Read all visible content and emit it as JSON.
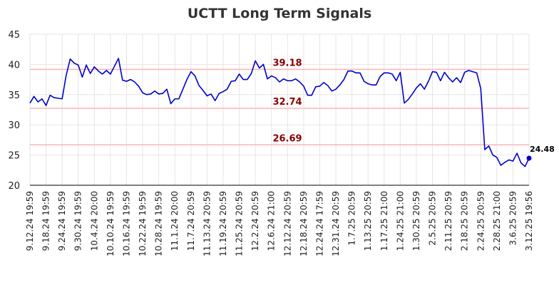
{
  "chart_data": {
    "type": "line",
    "title": "UCTT Long Term Signals",
    "ylim": [
      20,
      45
    ],
    "yticks": [
      20,
      25,
      30,
      35,
      40,
      45
    ],
    "grid": true,
    "x_tick_labels": [
      "9.12.24 19:59",
      "9.18.24 19:59",
      "9.24.24 19:59",
      "9.30.24 19:59",
      "10.4.24 20:00",
      "10.10.24 19:59",
      "10.16.24 19:59",
      "10.22.24 19:59",
      "10.28.24 19:59",
      "11.1.24 20:00",
      "11.7.24 20:59",
      "11.13.24 20:59",
      "11.19.24 20:59",
      "11.25.24 20:59",
      "12.2.24 20:59",
      "12.6.24 21:00",
      "12.12.24 20:59",
      "12.18.24 20:59",
      "12.24.24 17:59",
      "12.31.24 20:59",
      "1.7.25 20:59",
      "1.13.25 20:59",
      "1.17.25 21:00",
      "1.24.25 21:00",
      "1.30.25 20:59",
      "2.5.25 20:59",
      "2.11.25 20:59",
      "2.18.25 20:59",
      "2.24.25 20:59",
      "2.28.25 21:00",
      "3.6.25 20:59",
      "3.12.25 19:56"
    ],
    "levels": [
      {
        "label": "39.18",
        "value": 39.18
      },
      {
        "label": "32.74",
        "value": 32.74
      },
      {
        "label": "26.69",
        "value": 26.69
      }
    ],
    "line_color": "#0000cc",
    "level_color": "#ffb3b3",
    "last_point": {
      "label": "24.48",
      "value": 24.48
    },
    "series": [
      {
        "values": [
          33.6,
          34.7,
          33.8,
          34.3,
          33.2,
          34.9,
          34.5,
          34.4,
          34.3,
          38.2,
          40.9,
          40.2,
          39.9,
          37.9,
          39.9,
          38.5,
          39.6,
          38.9,
          38.4,
          39.0,
          38.4,
          39.7,
          41.0,
          37.4,
          37.2,
          37.5,
          37.1,
          36.4,
          35.3,
          35.0,
          35.1,
          35.6,
          35.1,
          35.2,
          35.9,
          33.5,
          34.3,
          34.3,
          35.9,
          37.5,
          38.8,
          38.1,
          36.5,
          35.7,
          34.8,
          35.1,
          34.0,
          35.2,
          35.5,
          35.9,
          37.2,
          37.3,
          38.4,
          37.5,
          37.5,
          38.5,
          40.6,
          39.4,
          40.0,
          37.6,
          38.1,
          37.8,
          37.1,
          37.6,
          37.3,
          37.3,
          37.6,
          37.1,
          36.4,
          34.9,
          34.9,
          36.3,
          36.4,
          37.0,
          36.5,
          35.6,
          35.9,
          36.6,
          37.5,
          38.9,
          38.9,
          38.6,
          38.6,
          37.2,
          36.8,
          36.6,
          36.6,
          38.0,
          38.6,
          38.6,
          38.4,
          37.3,
          38.7,
          33.6,
          34.2,
          35.1,
          36.1,
          36.8,
          35.9,
          37.2,
          38.8,
          38.7,
          37.3,
          38.7,
          37.8,
          37.1,
          37.8,
          37.0,
          38.7,
          39.0,
          38.8,
          38.6,
          36.0,
          25.9,
          26.5,
          25.0,
          24.6,
          23.3,
          23.8,
          24.2,
          24.0,
          25.3,
          23.7,
          23.1,
          24.48
        ]
      }
    ]
  }
}
